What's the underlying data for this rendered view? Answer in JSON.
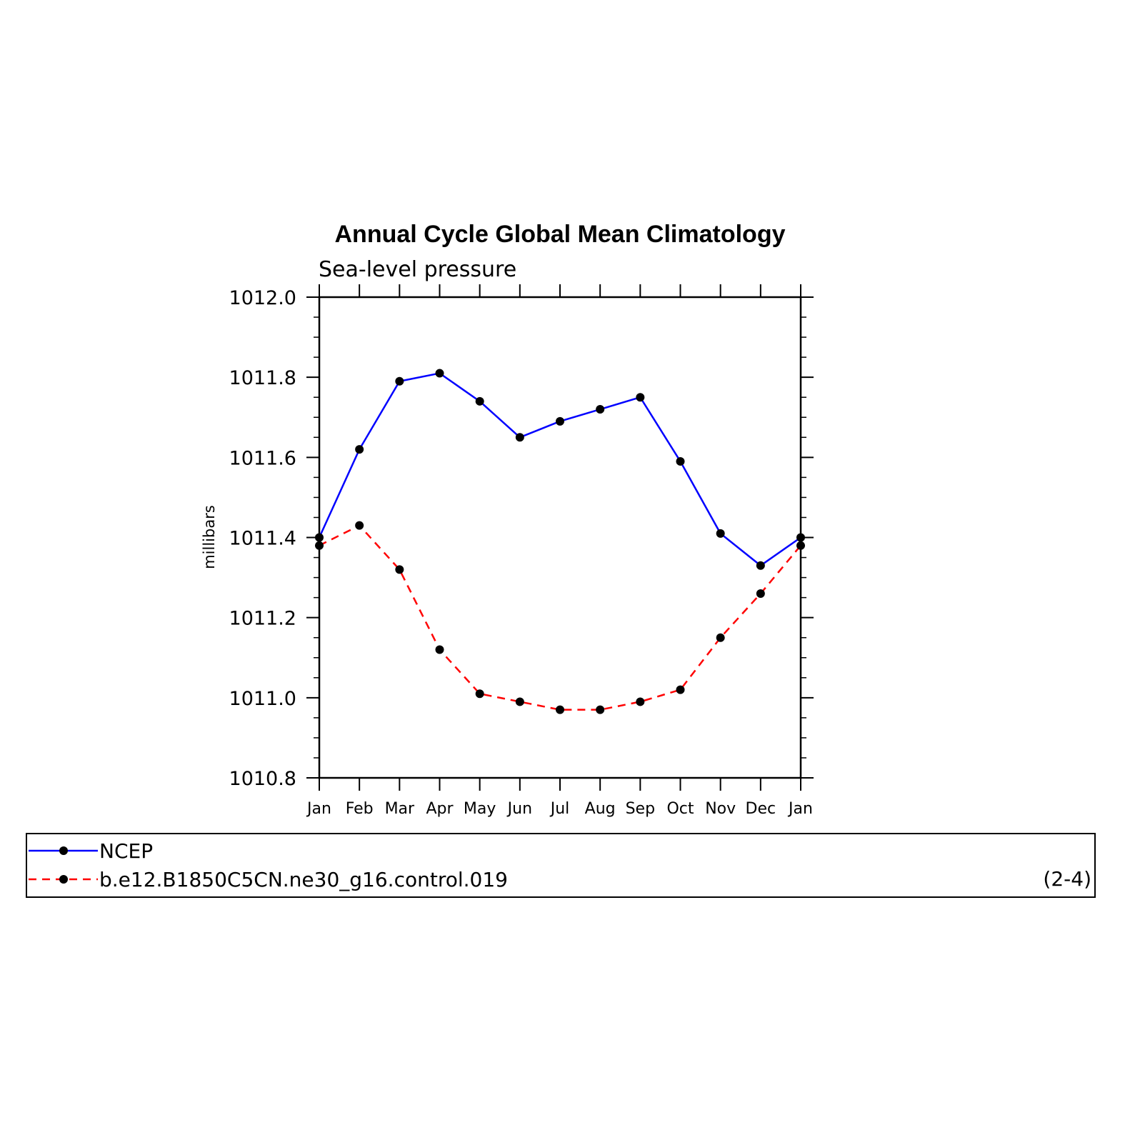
{
  "chart_data": {
    "type": "line",
    "title": "Annual Cycle Global Mean Climatology",
    "subtitle": "Sea-level pressure",
    "xlabel": "",
    "ylabel": "millibars",
    "categories": [
      "Jan",
      "Feb",
      "Mar",
      "Apr",
      "May",
      "Jun",
      "Jul",
      "Aug",
      "Sep",
      "Oct",
      "Nov",
      "Dec",
      "Jan"
    ],
    "ylim": [
      1010.8,
      1012.0
    ],
    "yticks": [
      "1010.8",
      "1011.0",
      "1011.2",
      "1011.4",
      "1011.6",
      "1011.8",
      "1012.0"
    ],
    "grid": false,
    "legend_position": "bottom",
    "series": [
      {
        "name": "NCEP",
        "color": "#0000ff",
        "line_style": "solid",
        "marker": "filled-circle",
        "values": [
          1011.4,
          1011.62,
          1011.79,
          1011.81,
          1011.74,
          1011.65,
          1011.69,
          1011.72,
          1011.75,
          1011.59,
          1011.41,
          1011.33,
          1011.4
        ]
      },
      {
        "name": "b.e12.B1850C5CN.ne30_g16.control.019",
        "color": "#ff0000",
        "line_style": "dashed",
        "marker": "filled-circle",
        "values": [
          1011.38,
          1011.43,
          1011.32,
          1011.12,
          1011.01,
          1010.99,
          1010.97,
          1010.97,
          1010.99,
          1011.02,
          1011.15,
          1011.26,
          1011.38
        ]
      }
    ]
  },
  "panel_label": "(2-4)"
}
